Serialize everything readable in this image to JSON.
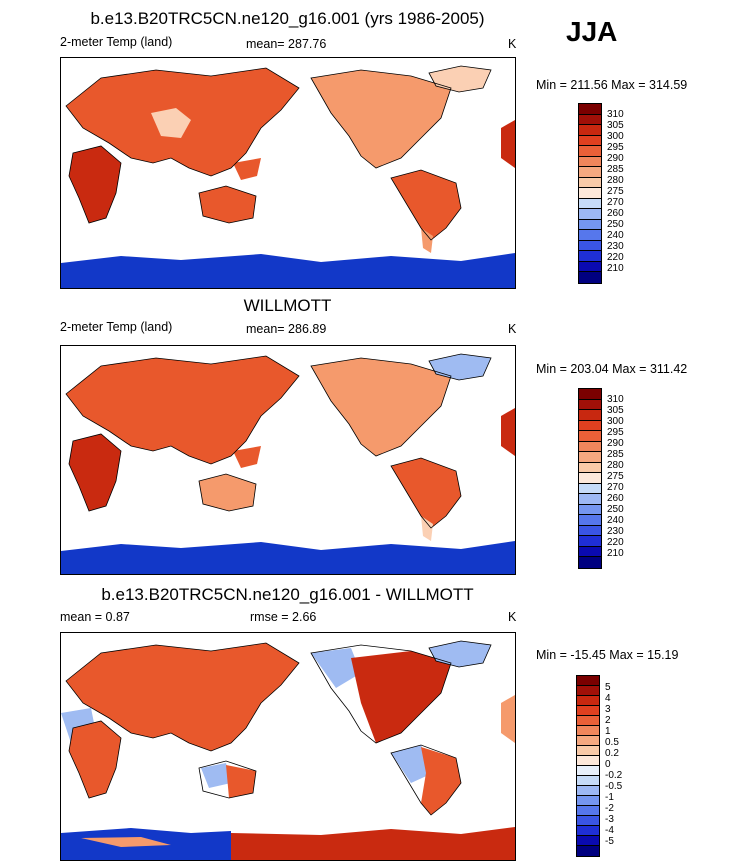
{
  "season": "JJA",
  "colors": {
    "abs_levels": [
      "#000080",
      "#0a0ab0",
      "#1f2fd6",
      "#3a55e4",
      "#5677ec",
      "#7596f0",
      "#9db8f4",
      "#c6dbf8",
      "#fde8da",
      "#f9caa8",
      "#f5a880",
      "#f0865c",
      "#ea6038",
      "#e04020",
      "#c82810",
      "#a01008",
      "#7a0000"
    ],
    "diff_levels": [
      "#000080",
      "#0a0ab0",
      "#1f2fd6",
      "#3a55e4",
      "#5677ec",
      "#7596f0",
      "#9db8f4",
      "#c6dbf8",
      "#e8f0fb",
      "#fde8da",
      "#f9caa8",
      "#f5a880",
      "#f0865c",
      "#ea6038",
      "#e04020",
      "#c82810",
      "#a01008",
      "#7a0000"
    ],
    "land_warm": "#e8582c",
    "land_hot": "#c92a10",
    "land_mild": "#f59a6c",
    "land_cool": "#fbd0b4",
    "ice": "#1238c8",
    "ice_deep": "#0a1a90",
    "ice_light": "#9fbbf2"
  },
  "panels": [
    {
      "title": "b.e13.B20TRC5CN.ne120_g16.001 (yrs 1986-2005)",
      "left_label": "2-meter Temp (land)",
      "center_label": "mean= 287.76",
      "units": "K",
      "minmax": "Min = 211.56 Max = 314.59",
      "legend_labels": [
        "310",
        "305",
        "300",
        "295",
        "290",
        "285",
        "280",
        "275",
        "270",
        "260",
        "250",
        "240",
        "230",
        "220",
        "210"
      ]
    },
    {
      "title": "WILLMOTT",
      "left_label": "2-meter Temp (land)",
      "center_label": "mean= 286.89",
      "units": "K",
      "minmax": "Min = 203.04 Max = 311.42",
      "legend_labels": [
        "310",
        "305",
        "300",
        "295",
        "290",
        "285",
        "280",
        "275",
        "270",
        "260",
        "250",
        "240",
        "230",
        "220",
        "210"
      ]
    },
    {
      "title": "b.e13.B20TRC5CN.ne120_g16.001 - WILLMOTT",
      "left_label": "mean =   0.87",
      "center_label": "rmse =   2.66",
      "units": "K",
      "minmax": "Min = -15.45 Max =  15.19",
      "legend_labels": [
        "5",
        "4",
        "3",
        "2",
        "1",
        "0.5",
        "0.2",
        "0",
        "-0.2",
        "-0.5",
        "-1",
        "-2",
        "-3",
        "-4",
        "-5"
      ]
    }
  ]
}
